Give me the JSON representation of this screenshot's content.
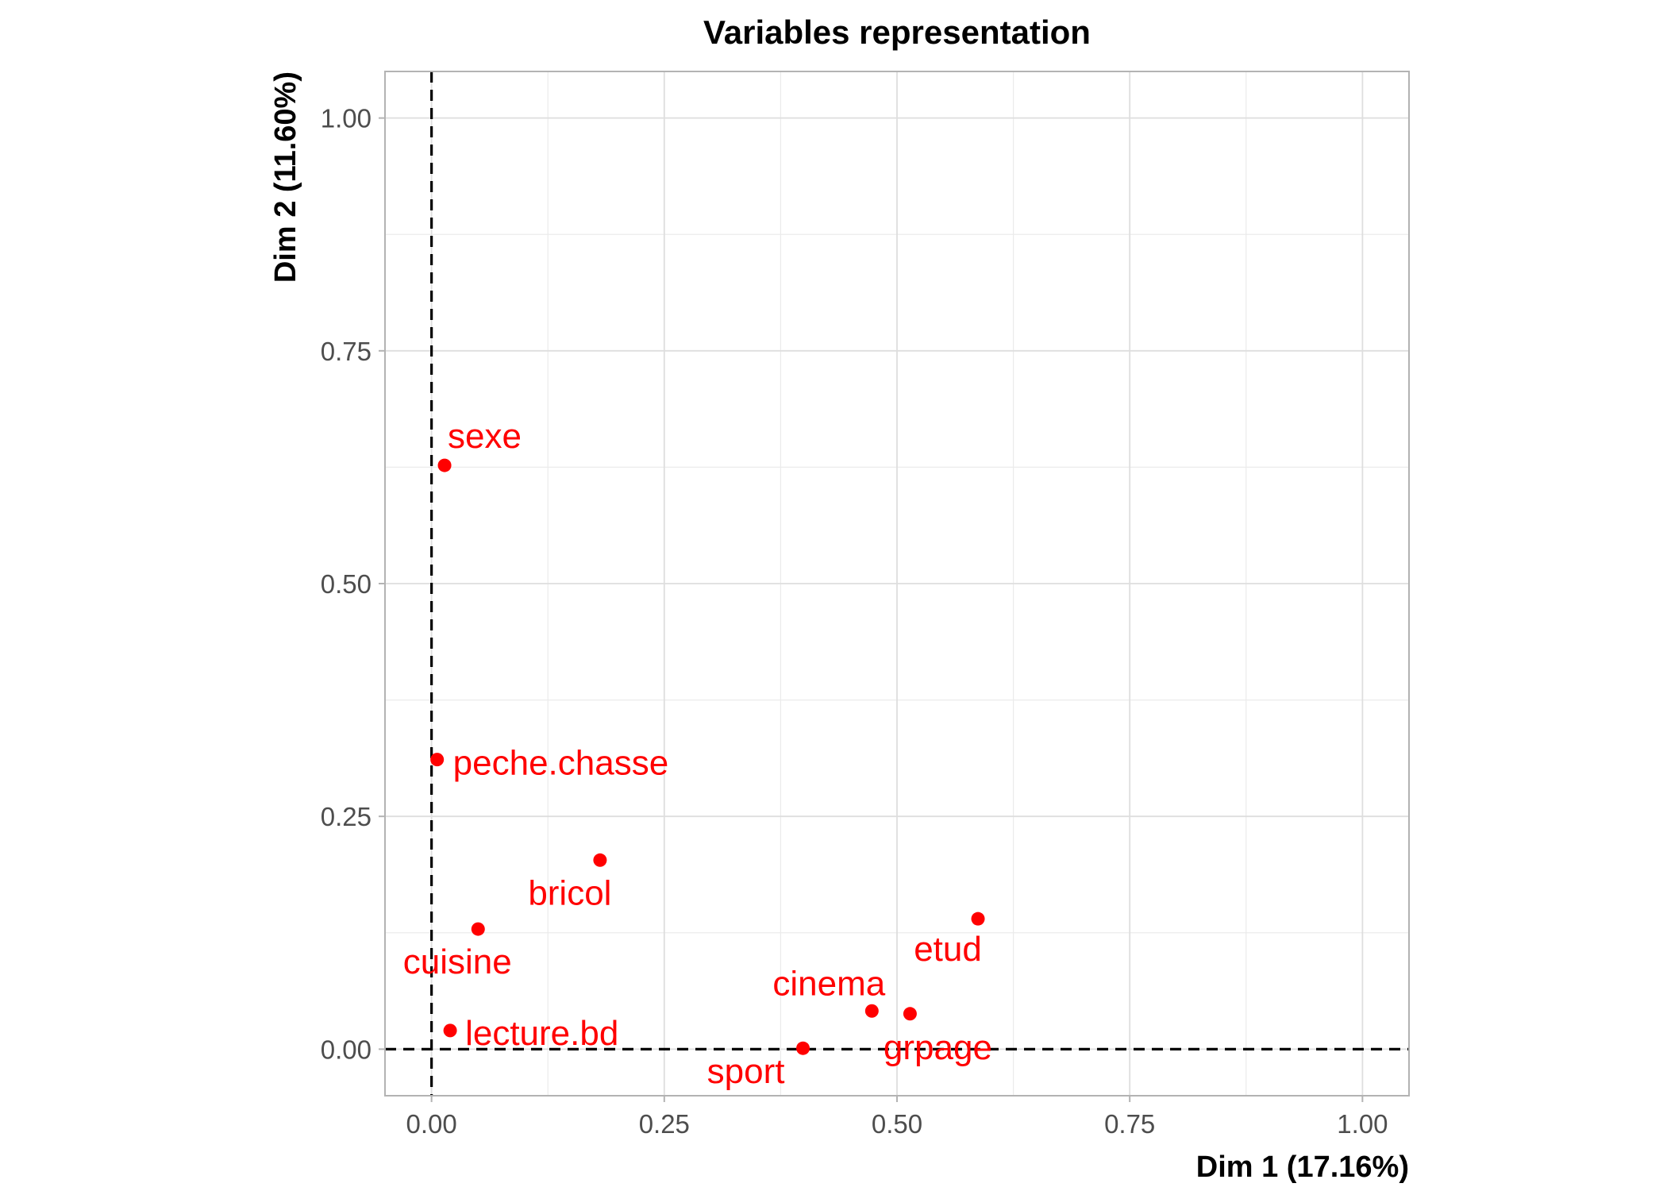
{
  "chart_data": {
    "type": "scatter",
    "title": "Variables representation",
    "xlabel": "Dim 1 (17.16%)",
    "ylabel": "Dim 2 (11.60%)",
    "xlim": [
      -0.05,
      1.05
    ],
    "ylim": [
      -0.05,
      1.05
    ],
    "x_ticks": [
      0.0,
      0.25,
      0.5,
      0.75,
      1.0
    ],
    "y_ticks": [
      0.0,
      0.25,
      0.5,
      0.75,
      1.0
    ],
    "x_tick_labels": [
      "0.00",
      "0.25",
      "0.50",
      "0.75",
      "1.00"
    ],
    "y_tick_labels": [
      "0.00",
      "0.25",
      "0.50",
      "0.75",
      "1.00"
    ],
    "grid": true,
    "reference_lines": {
      "x": 0,
      "y": 0,
      "style": "dashed"
    },
    "point_color": "#ff0000",
    "points": [
      {
        "label": "sexe",
        "x": 0.014,
        "y": 0.627
      },
      {
        "label": "peche.chasse",
        "x": 0.006,
        "y": 0.311
      },
      {
        "label": "bricol",
        "x": 0.181,
        "y": 0.203
      },
      {
        "label": "cuisine",
        "x": 0.05,
        "y": 0.129
      },
      {
        "label": "lecture.bd",
        "x": 0.02,
        "y": 0.02
      },
      {
        "label": "sport",
        "x": 0.399,
        "y": 0.001
      },
      {
        "label": "cinema",
        "x": 0.473,
        "y": 0.041
      },
      {
        "label": "grpage",
        "x": 0.514,
        "y": 0.038
      },
      {
        "label": "etud",
        "x": 0.587,
        "y": 0.14
      }
    ]
  }
}
